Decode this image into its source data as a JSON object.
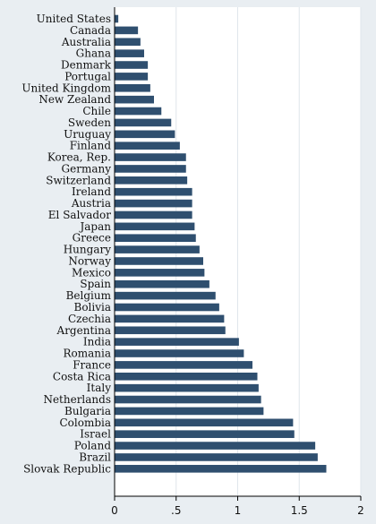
{
  "chart_data": {
    "type": "bar",
    "orientation": "horizontal",
    "title": "",
    "xlabel": "",
    "ylabel": "",
    "xlim": [
      0,
      2
    ],
    "grid": true,
    "legend": "none",
    "bar_color": "#2f4f6f",
    "background_color": "#e9eef2",
    "plot_background_color": "#ffffff",
    "grid_color": "#dfe6ec",
    "x_ticks": [
      {
        "value": 0,
        "label": "0"
      },
      {
        "value": 0.5,
        "label": ".5"
      },
      {
        "value": 1,
        "label": "1"
      },
      {
        "value": 1.5,
        "label": "1.5"
      },
      {
        "value": 2,
        "label": "2"
      }
    ],
    "categories": [
      "United States",
      "Canada",
      "Australia",
      "Ghana",
      "Denmark",
      "Portugal",
      "United Kingdom",
      "New Zealand",
      "Chile",
      "Sweden",
      "Uruguay",
      "Finland",
      "Korea, Rep.",
      "Germany",
      "Switzerland",
      "Ireland",
      "Austria",
      "El Salvador",
      "Japan",
      "Greece",
      "Hungary",
      "Norway",
      "Mexico",
      "Spain",
      "Belgium",
      "Bolivia",
      "Czechia",
      "Argentina",
      "India",
      "Romania",
      "France",
      "Costa Rica",
      "Italy",
      "Netherlands",
      "Bulgaria",
      "Colombia",
      "Israel",
      "Poland",
      "Brazil",
      "Slovak Republic"
    ],
    "values": [
      0.03,
      0.19,
      0.21,
      0.24,
      0.27,
      0.27,
      0.29,
      0.32,
      0.38,
      0.46,
      0.49,
      0.53,
      0.58,
      0.58,
      0.59,
      0.63,
      0.63,
      0.63,
      0.65,
      0.66,
      0.69,
      0.72,
      0.73,
      0.77,
      0.82,
      0.85,
      0.89,
      0.9,
      1.01,
      1.05,
      1.12,
      1.16,
      1.17,
      1.19,
      1.21,
      1.45,
      1.46,
      1.63,
      1.65,
      1.72
    ]
  }
}
